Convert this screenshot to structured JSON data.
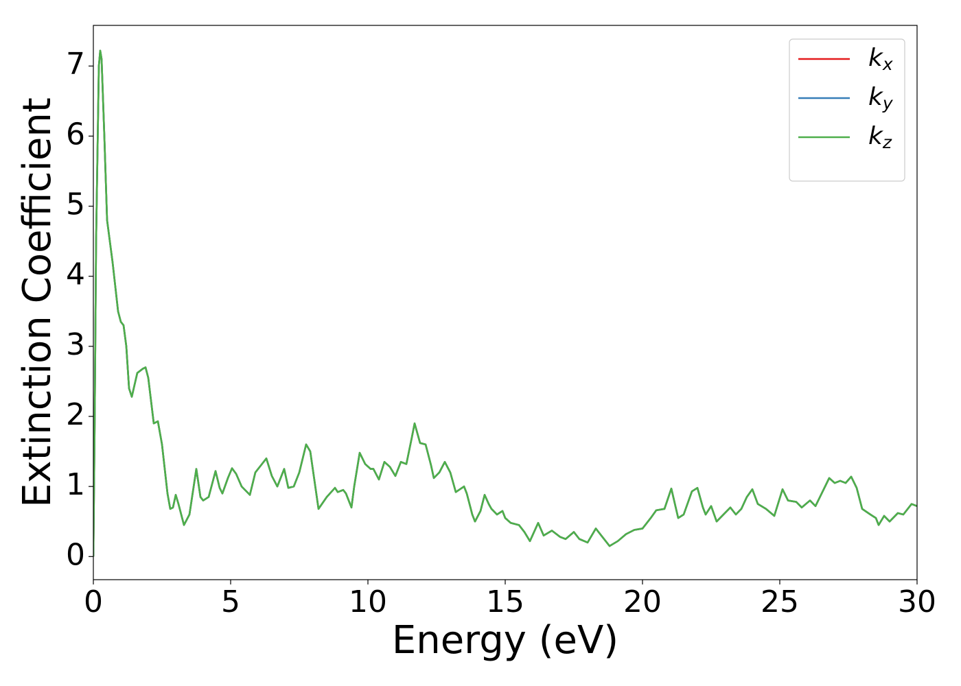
{
  "chart_data": {
    "type": "line",
    "xlabel": "Energy (eV)",
    "ylabel": "Extinction Coefficient",
    "xlim": [
      0,
      30
    ],
    "ylim": [
      -0.33,
      7.58
    ],
    "xticks": [
      0,
      5,
      10,
      15,
      20,
      25,
      30
    ],
    "yticks": [
      0,
      1,
      2,
      3,
      4,
      5,
      6,
      7
    ],
    "legend": "upper right",
    "x": [
      0,
      0.05,
      0.1,
      0.2,
      0.25,
      0.3,
      0.4,
      0.5,
      0.7,
      0.9,
      1.0,
      1.1,
      1.2,
      1.3,
      1.4,
      1.6,
      1.8,
      1.9,
      2.0,
      2.2,
      2.35,
      2.5,
      2.7,
      2.8,
      2.9,
      3.0,
      3.1,
      3.3,
      3.5,
      3.75,
      3.9,
      4.0,
      4.2,
      4.45,
      4.6,
      4.7,
      4.9,
      5.05,
      5.2,
      5.4,
      5.7,
      5.9,
      6.1,
      6.3,
      6.5,
      6.7,
      6.95,
      7.1,
      7.3,
      7.5,
      7.75,
      7.9,
      8.2,
      8.5,
      8.8,
      8.9,
      9.1,
      9.2,
      9.4,
      9.5,
      9.7,
      9.9,
      10.1,
      10.2,
      10.4,
      10.6,
      10.8,
      11.0,
      11.2,
      11.4,
      11.6,
      11.7,
      11.9,
      12.1,
      12.3,
      12.4,
      12.6,
      12.8,
      13.0,
      13.2,
      13.5,
      13.6,
      13.8,
      13.9,
      14.1,
      14.25,
      14.4,
      14.5,
      14.7,
      14.9,
      15.0,
      15.2,
      15.5,
      15.7,
      15.9,
      16.2,
      16.4,
      16.7,
      17.0,
      17.2,
      17.5,
      17.7,
      18.0,
      18.3,
      18.5,
      18.8,
      19.1,
      19.4,
      19.7,
      20.0,
      20.3,
      20.5,
      20.8,
      21.05,
      21.3,
      21.5,
      21.8,
      22.0,
      22.2,
      22.3,
      22.5,
      22.7,
      23.0,
      23.2,
      23.4,
      23.6,
      23.8,
      24.0,
      24.2,
      24.5,
      24.8,
      25.1,
      25.3,
      25.6,
      25.8,
      26.1,
      26.3,
      26.5,
      26.8,
      27.0,
      27.2,
      27.4,
      27.6,
      27.8,
      28.0,
      28.3,
      28.5,
      28.6,
      28.8,
      29.0,
      29.3,
      29.5,
      29.8,
      30.0
    ],
    "series": [
      {
        "name": "kx",
        "color": "#e41a1c",
        "values": [
          0,
          2.0,
          4.5,
          7.0,
          7.22,
          7.1,
          6.0,
          4.8,
          4.2,
          3.5,
          3.35,
          3.3,
          3.0,
          2.4,
          2.28,
          2.62,
          2.68,
          2.7,
          2.55,
          1.9,
          1.93,
          1.6,
          0.9,
          0.68,
          0.7,
          0.88,
          0.75,
          0.45,
          0.6,
          1.25,
          0.85,
          0.8,
          0.85,
          1.22,
          0.98,
          0.9,
          1.12,
          1.26,
          1.18,
          1.0,
          0.88,
          1.2,
          1.3,
          1.4,
          1.15,
          1.0,
          1.25,
          0.98,
          1.0,
          1.2,
          1.6,
          1.5,
          0.68,
          0.85,
          0.98,
          0.92,
          0.95,
          0.9,
          0.7,
          1.0,
          1.48,
          1.32,
          1.25,
          1.25,
          1.1,
          1.35,
          1.28,
          1.15,
          1.35,
          1.32,
          1.7,
          1.9,
          1.62,
          1.6,
          1.3,
          1.12,
          1.2,
          1.35,
          1.2,
          0.92,
          1.0,
          0.9,
          0.6,
          0.5,
          0.65,
          0.88,
          0.75,
          0.68,
          0.6,
          0.65,
          0.55,
          0.48,
          0.45,
          0.35,
          0.22,
          0.48,
          0.3,
          0.37,
          0.28,
          0.25,
          0.35,
          0.25,
          0.2,
          0.4,
          0.3,
          0.15,
          0.22,
          0.32,
          0.38,
          0.4,
          0.55,
          0.66,
          0.68,
          0.97,
          0.55,
          0.6,
          0.93,
          0.98,
          0.7,
          0.6,
          0.72,
          0.5,
          0.62,
          0.7,
          0.6,
          0.68,
          0.85,
          0.96,
          0.75,
          0.68,
          0.58,
          0.96,
          0.8,
          0.78,
          0.7,
          0.8,
          0.72,
          0.88,
          1.12,
          1.05,
          1.08,
          1.05,
          1.14,
          0.98,
          0.68,
          0.6,
          0.55,
          0.45,
          0.58,
          0.5,
          0.62,
          0.6,
          0.75,
          0.72
        ]
      },
      {
        "name": "ky",
        "color": "#377eb8",
        "values": [
          0,
          2.0,
          4.5,
          7.0,
          7.22,
          7.1,
          6.0,
          4.8,
          4.2,
          3.5,
          3.35,
          3.3,
          3.0,
          2.4,
          2.28,
          2.62,
          2.68,
          2.7,
          2.55,
          1.9,
          1.93,
          1.6,
          0.9,
          0.68,
          0.7,
          0.88,
          0.75,
          0.45,
          0.6,
          1.25,
          0.85,
          0.8,
          0.85,
          1.22,
          0.98,
          0.9,
          1.12,
          1.26,
          1.18,
          1.0,
          0.88,
          1.2,
          1.3,
          1.4,
          1.15,
          1.0,
          1.25,
          0.98,
          1.0,
          1.2,
          1.6,
          1.5,
          0.68,
          0.85,
          0.98,
          0.92,
          0.95,
          0.9,
          0.7,
          1.0,
          1.48,
          1.32,
          1.25,
          1.25,
          1.1,
          1.35,
          1.28,
          1.15,
          1.35,
          1.32,
          1.7,
          1.9,
          1.62,
          1.6,
          1.3,
          1.12,
          1.2,
          1.35,
          1.2,
          0.92,
          1.0,
          0.9,
          0.6,
          0.5,
          0.65,
          0.88,
          0.75,
          0.68,
          0.6,
          0.65,
          0.55,
          0.48,
          0.45,
          0.35,
          0.22,
          0.48,
          0.3,
          0.37,
          0.28,
          0.25,
          0.35,
          0.25,
          0.2,
          0.4,
          0.3,
          0.15,
          0.22,
          0.32,
          0.38,
          0.4,
          0.55,
          0.66,
          0.68,
          0.97,
          0.55,
          0.6,
          0.93,
          0.98,
          0.7,
          0.6,
          0.72,
          0.5,
          0.62,
          0.7,
          0.6,
          0.68,
          0.85,
          0.96,
          0.75,
          0.68,
          0.58,
          0.96,
          0.8,
          0.78,
          0.7,
          0.8,
          0.72,
          0.88,
          1.12,
          1.05,
          1.08,
          1.05,
          1.14,
          0.98,
          0.68,
          0.6,
          0.55,
          0.45,
          0.58,
          0.5,
          0.62,
          0.6,
          0.75,
          0.72
        ]
      },
      {
        "name": "kz",
        "color": "#4daf4a",
        "values": [
          0,
          2.0,
          4.5,
          7.0,
          7.22,
          7.1,
          6.0,
          4.8,
          4.2,
          3.5,
          3.35,
          3.3,
          3.0,
          2.4,
          2.28,
          2.62,
          2.68,
          2.7,
          2.55,
          1.9,
          1.93,
          1.6,
          0.9,
          0.68,
          0.7,
          0.88,
          0.75,
          0.45,
          0.6,
          1.25,
          0.85,
          0.8,
          0.85,
          1.22,
          0.98,
          0.9,
          1.12,
          1.26,
          1.18,
          1.0,
          0.88,
          1.2,
          1.3,
          1.4,
          1.15,
          1.0,
          1.25,
          0.98,
          1.0,
          1.2,
          1.6,
          1.5,
          0.68,
          0.85,
          0.98,
          0.92,
          0.95,
          0.9,
          0.7,
          1.0,
          1.48,
          1.32,
          1.25,
          1.25,
          1.1,
          1.35,
          1.28,
          1.15,
          1.35,
          1.32,
          1.7,
          1.9,
          1.62,
          1.6,
          1.3,
          1.12,
          1.2,
          1.35,
          1.2,
          0.92,
          1.0,
          0.9,
          0.6,
          0.5,
          0.65,
          0.88,
          0.75,
          0.68,
          0.6,
          0.65,
          0.55,
          0.48,
          0.45,
          0.35,
          0.22,
          0.48,
          0.3,
          0.37,
          0.28,
          0.25,
          0.35,
          0.25,
          0.2,
          0.4,
          0.3,
          0.15,
          0.22,
          0.32,
          0.38,
          0.4,
          0.55,
          0.66,
          0.68,
          0.97,
          0.55,
          0.6,
          0.93,
          0.98,
          0.7,
          0.6,
          0.72,
          0.5,
          0.62,
          0.7,
          0.6,
          0.68,
          0.85,
          0.96,
          0.75,
          0.68,
          0.58,
          0.96,
          0.8,
          0.78,
          0.7,
          0.8,
          0.72,
          0.88,
          1.12,
          1.05,
          1.08,
          1.05,
          1.14,
          0.98,
          0.68,
          0.6,
          0.55,
          0.45,
          0.58,
          0.5,
          0.62,
          0.6,
          0.75,
          0.72
        ]
      }
    ]
  }
}
